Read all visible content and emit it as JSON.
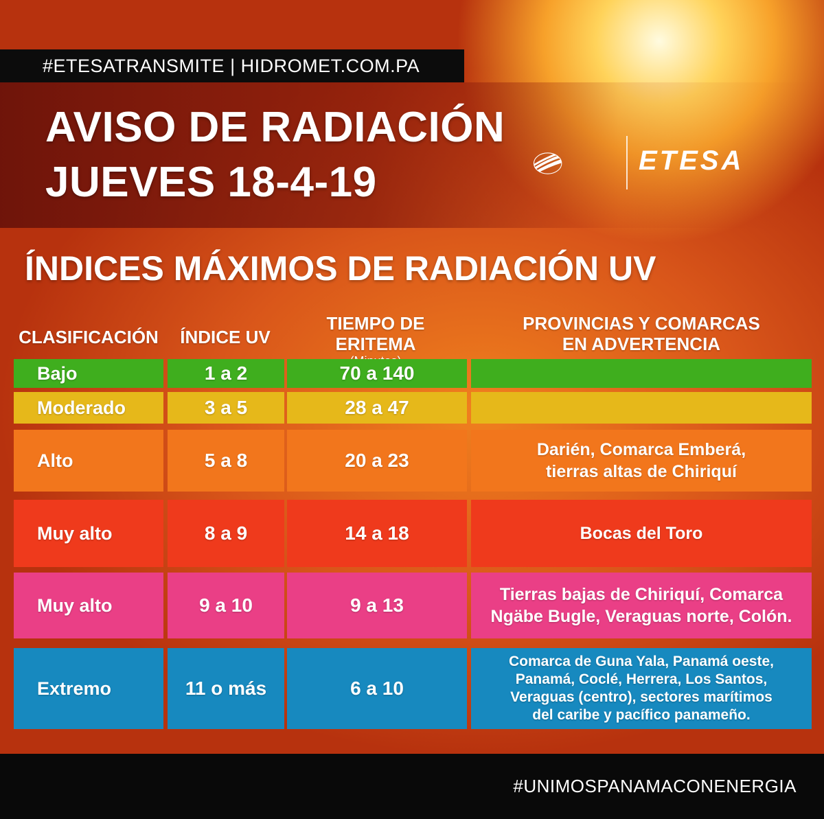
{
  "header": {
    "hashtag": "#ETESATRANSMITE",
    "separator": "|",
    "website": "HIDROMET.COM.PA",
    "title_line1": "AVISO DE RADIACIÓN",
    "title_line2": "JUEVES 18-4-19",
    "logo_text": "ETESA"
  },
  "section_title": "ÍNDICES MÁXIMOS DE RADIACIÓN UV",
  "table": {
    "columns": {
      "clasificacion": "CLASIFICACIÓN",
      "indice": "ÍNDICE UV",
      "tiempo": "TIEMPO DE ERITEMA",
      "tiempo_sub": "(Minutos)",
      "provincias_1": "PROVINCIAS Y COMARCAS",
      "provincias_2": "EN ADVERTENCIA"
    },
    "rows": [
      {
        "label": "Bajo",
        "index": "1 a 2",
        "time": "70 a 140",
        "provinces": "",
        "color": "#3fae1e"
      },
      {
        "label": "Moderado",
        "index": "3 a 5",
        "time": "28 a 47",
        "provinces": "",
        "color": "#e6b81a"
      },
      {
        "label": "Alto",
        "index": "5 a 8",
        "time": "20 a 23",
        "provinces": "Darién, Comarca Emberá,\ntierras altas de Chiriquí",
        "color": "#f2761c"
      },
      {
        "label": "Muy alto",
        "index": "8 a 9",
        "time": "14 a 18",
        "provinces": "Bocas del Toro",
        "color": "#ef3a1c"
      },
      {
        "label": "Muy alto",
        "index": "9 a 10",
        "time": "9 a 13",
        "provinces": "Tierras bajas de Chiriquí, Comarca\nNgäbe Bugle, Veraguas norte, Colón.",
        "color": "#ea3f86"
      },
      {
        "label": "Extremo",
        "index": "11 o más",
        "time": "6 a 10",
        "provinces": "Comarca de Guna Yala, Panamá oeste,\nPanamá, Coclé, Herrera, Los Santos,\nVeraguas (centro), sectores marítimos\ndel caribe y pacífico panameño.",
        "color": "#1789bf"
      }
    ]
  },
  "footer": {
    "hashtag": "#UNIMOSPANAMACONENERGIA"
  }
}
